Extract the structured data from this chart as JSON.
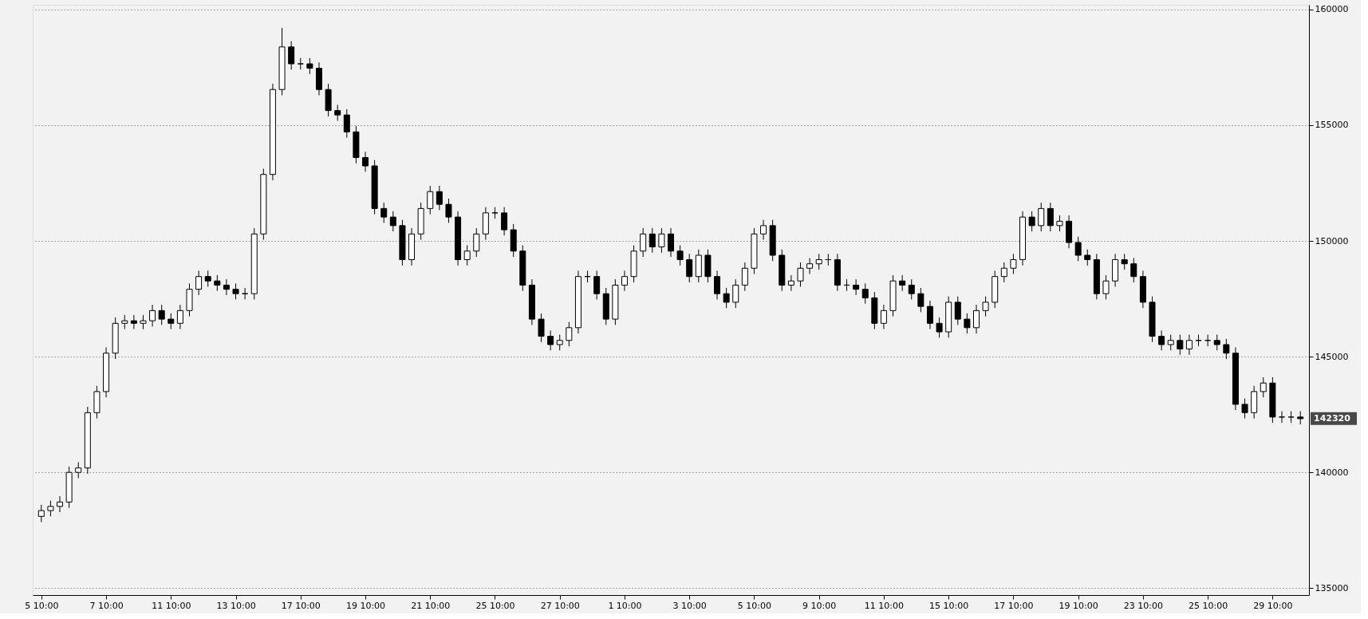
{
  "chart_data": {
    "type": "candlestick",
    "categories": [
      "5 10:00",
      null,
      null,
      null,
      null,
      null,
      null,
      "7 10:00",
      null,
      null,
      null,
      null,
      null,
      null,
      "11 10:00",
      null,
      null,
      null,
      null,
      null,
      null,
      "13 10:00",
      null,
      null,
      null,
      null,
      null,
      null,
      "17 10:00",
      null,
      null,
      null,
      null,
      null,
      null,
      "19 10:00",
      null,
      null,
      null,
      null,
      null,
      null,
      "21 10:00",
      null,
      null,
      null,
      null,
      null,
      null,
      "25 10:00",
      null,
      null,
      null,
      null,
      null,
      null,
      "27 10:00",
      null,
      null,
      null,
      null,
      null,
      null,
      "1 10:00",
      null,
      null,
      null,
      null,
      null,
      null,
      "3 10:00",
      null,
      null,
      null,
      null,
      null,
      null,
      "5 10:00",
      null,
      null,
      null,
      null,
      null,
      null,
      "9 10:00",
      null,
      null,
      null,
      null,
      null,
      null,
      "11 10:00",
      null,
      null,
      null,
      null,
      null,
      null,
      "15 10:00",
      null,
      null,
      null,
      null,
      null,
      null,
      "17 10:00",
      null,
      null,
      null,
      null,
      null,
      null,
      "19 10:00",
      null,
      null,
      null,
      null,
      null,
      null,
      "23 10:00",
      null,
      null,
      null,
      null,
      null,
      null,
      "25 10:00",
      null,
      null,
      null,
      null,
      null,
      null,
      "29 10:00",
      null,
      null,
      null
    ],
    "ohlc": [
      [
        138100,
        138600,
        137850,
        138350
      ],
      [
        138350,
        138780,
        138100,
        138530
      ],
      [
        138530,
        138970,
        138280,
        138720
      ],
      [
        138720,
        140250,
        138470,
        140000
      ],
      [
        140000,
        140440,
        139750,
        140190
      ],
      [
        140190,
        142830,
        139940,
        142580
      ],
      [
        142580,
        143740,
        142330,
        143490
      ],
      [
        143490,
        145400,
        143240,
        145150
      ],
      [
        145150,
        146690,
        144900,
        146440
      ],
      [
        146440,
        146800,
        146190,
        146550
      ],
      [
        146550,
        146800,
        146190,
        146440
      ],
      [
        146440,
        146800,
        146190,
        146550
      ],
      [
        146550,
        147240,
        146300,
        146990
      ],
      [
        146990,
        147240,
        146370,
        146620
      ],
      [
        146620,
        146870,
        146190,
        146440
      ],
      [
        146440,
        147240,
        146190,
        146990
      ],
      [
        146990,
        148160,
        146740,
        147910
      ],
      [
        147910,
        148710,
        147660,
        148460
      ],
      [
        148460,
        148710,
        148020,
        148270
      ],
      [
        148270,
        148520,
        147840,
        148090
      ],
      [
        148090,
        148340,
        147660,
        147910
      ],
      [
        147910,
        148160,
        147470,
        147720
      ],
      [
        147720,
        147970,
        147470,
        147720
      ],
      [
        147720,
        150550,
        147470,
        150300
      ],
      [
        150300,
        153120,
        150050,
        152870
      ],
      [
        152870,
        156790,
        152620,
        156540
      ],
      [
        156540,
        159200,
        156290,
        158380
      ],
      [
        158380,
        158630,
        157400,
        157650
      ],
      [
        157650,
        157900,
        157400,
        157650
      ],
      [
        157650,
        157900,
        157210,
        157460
      ],
      [
        157460,
        157710,
        156290,
        156540
      ],
      [
        156540,
        156790,
        155380,
        155630
      ],
      [
        155630,
        155880,
        155190,
        155440
      ],
      [
        155440,
        155690,
        154460,
        154710
      ],
      [
        154710,
        154960,
        153350,
        153600
      ],
      [
        153600,
        153850,
        152990,
        153240
      ],
      [
        153240,
        153490,
        151150,
        151400
      ],
      [
        151400,
        151650,
        150780,
        151030
      ],
      [
        151030,
        151280,
        150410,
        150660
      ],
      [
        150660,
        150910,
        148940,
        149190
      ],
      [
        149190,
        150550,
        148940,
        150300
      ],
      [
        150300,
        151650,
        150050,
        151400
      ],
      [
        151400,
        152380,
        151150,
        152130
      ],
      [
        152130,
        152380,
        151330,
        151580
      ],
      [
        151580,
        151830,
        150780,
        151030
      ],
      [
        151030,
        151280,
        148940,
        149190
      ],
      [
        149190,
        149810,
        148940,
        149560
      ],
      [
        149560,
        150550,
        149310,
        150300
      ],
      [
        150300,
        151460,
        150050,
        151210
      ],
      [
        151210,
        151460,
        150960,
        151210
      ],
      [
        151210,
        151460,
        150230,
        150480
      ],
      [
        150480,
        150730,
        149310,
        149560
      ],
      [
        149560,
        149810,
        147840,
        148090
      ],
      [
        148090,
        148340,
        146370,
        146620
      ],
      [
        146620,
        146870,
        145630,
        145880
      ],
      [
        145880,
        146130,
        145270,
        145520
      ],
      [
        145520,
        145950,
        145270,
        145700
      ],
      [
        145700,
        146500,
        145450,
        146250
      ],
      [
        146250,
        148710,
        146000,
        148460
      ],
      [
        148460,
        148710,
        148210,
        148460
      ],
      [
        148460,
        148710,
        147470,
        147720
      ],
      [
        147720,
        147970,
        146370,
        146620
      ],
      [
        146620,
        148340,
        146370,
        148090
      ],
      [
        148090,
        148710,
        147840,
        148460
      ],
      [
        148460,
        149810,
        148210,
        149560
      ],
      [
        149560,
        150550,
        149310,
        150300
      ],
      [
        150300,
        150550,
        149490,
        149740
      ],
      [
        149740,
        150550,
        149490,
        150300
      ],
      [
        150300,
        150550,
        149310,
        149560
      ],
      [
        149560,
        149810,
        148940,
        149190
      ],
      [
        149190,
        149440,
        148210,
        148460
      ],
      [
        148460,
        149630,
        148210,
        149380
      ],
      [
        149380,
        149630,
        148210,
        148460
      ],
      [
        148460,
        148710,
        147470,
        147720
      ],
      [
        147720,
        147970,
        147100,
        147350
      ],
      [
        147350,
        148340,
        147100,
        148090
      ],
      [
        148090,
        149070,
        147840,
        148820
      ],
      [
        148820,
        150550,
        148570,
        150300
      ],
      [
        150300,
        150910,
        150050,
        150660
      ],
      [
        150660,
        150910,
        149130,
        149380
      ],
      [
        149380,
        149630,
        147840,
        148090
      ],
      [
        148090,
        148520,
        147840,
        148270
      ],
      [
        148270,
        149070,
        148020,
        148820
      ],
      [
        148820,
        149260,
        148570,
        149010
      ],
      [
        149010,
        149440,
        148760,
        149190
      ],
      [
        149190,
        149440,
        148940,
        149190
      ],
      [
        149190,
        149440,
        147840,
        148090
      ],
      [
        148090,
        148340,
        147840,
        148090
      ],
      [
        148090,
        148340,
        147660,
        147910
      ],
      [
        147910,
        148160,
        147290,
        147540
      ],
      [
        147540,
        147790,
        146190,
        146440
      ],
      [
        146440,
        147240,
        146190,
        146990
      ],
      [
        146990,
        148520,
        146740,
        148270
      ],
      [
        148270,
        148520,
        147840,
        148090
      ],
      [
        148090,
        148340,
        147470,
        147720
      ],
      [
        147720,
        147970,
        146920,
        147170
      ],
      [
        147170,
        147420,
        146190,
        146440
      ],
      [
        146440,
        146690,
        145820,
        146070
      ],
      [
        146070,
        147600,
        145820,
        147350
      ],
      [
        147350,
        147600,
        146370,
        146620
      ],
      [
        146620,
        146870,
        146000,
        146250
      ],
      [
        146250,
        147240,
        146000,
        146990
      ],
      [
        146990,
        147600,
        146740,
        147350
      ],
      [
        147350,
        148710,
        147100,
        148460
      ],
      [
        148460,
        149070,
        148210,
        148820
      ],
      [
        148820,
        149440,
        148570,
        149190
      ],
      [
        149190,
        151280,
        148940,
        151030
      ],
      [
        151030,
        151280,
        150410,
        150660
      ],
      [
        150660,
        151650,
        150410,
        151400
      ],
      [
        151400,
        151650,
        150410,
        150660
      ],
      [
        150660,
        151100,
        150410,
        150850
      ],
      [
        150850,
        151100,
        149680,
        149930
      ],
      [
        149930,
        150180,
        149130,
        149380
      ],
      [
        149380,
        149630,
        148940,
        149190
      ],
      [
        149190,
        149440,
        147470,
        147720
      ],
      [
        147720,
        148520,
        147470,
        148270
      ],
      [
        148270,
        149440,
        148020,
        149190
      ],
      [
        149190,
        149440,
        148760,
        149010
      ],
      [
        149010,
        149260,
        148210,
        148460
      ],
      [
        148460,
        148710,
        147100,
        147350
      ],
      [
        147350,
        147600,
        145630,
        145880
      ],
      [
        145880,
        146130,
        145270,
        145520
      ],
      [
        145520,
        145950,
        145270,
        145700
      ],
      [
        145700,
        145950,
        145080,
        145330
      ],
      [
        145330,
        145950,
        145080,
        145700
      ],
      [
        145700,
        145950,
        145450,
        145700
      ],
      [
        145700,
        145950,
        145450,
        145700
      ],
      [
        145700,
        145950,
        145270,
        145520
      ],
      [
        145520,
        145770,
        144900,
        145150
      ],
      [
        145150,
        145400,
        142690,
        142940
      ],
      [
        142940,
        143190,
        142330,
        142580
      ],
      [
        142580,
        143740,
        142330,
        143490
      ],
      [
        143490,
        144110,
        143240,
        143860
      ],
      [
        143860,
        144110,
        142140,
        142390
      ],
      [
        142390,
        142640,
        142140,
        142390
      ],
      [
        142390,
        142640,
        142140,
        142390
      ],
      [
        142390,
        142640,
        142070,
        142320
      ]
    ],
    "ylim": [
      134700,
      160200
    ],
    "yticks": [
      135000,
      140000,
      145000,
      150000,
      155000,
      160000
    ],
    "grid": "y",
    "annotations": [
      "142320"
    ]
  }
}
